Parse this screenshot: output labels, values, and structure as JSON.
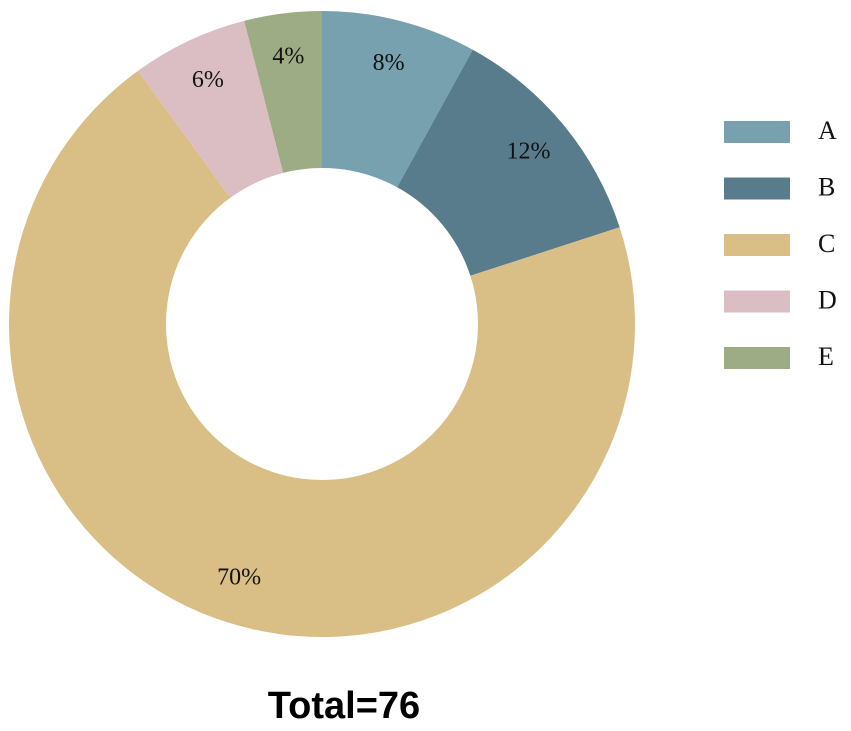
{
  "chart_data": {
    "type": "donut",
    "title": "Total=76",
    "categories": [
      "A",
      "B",
      "C",
      "D",
      "E"
    ],
    "values": [
      8,
      12,
      70,
      6,
      4
    ],
    "value_labels": [
      "8%",
      "12%",
      "70%",
      "6%",
      "4%"
    ],
    "colors": [
      "#77a1ae",
      "#587c8c",
      "#d9bf85",
      "#dbbdc4",
      "#9dac85"
    ],
    "legend": "right"
  }
}
